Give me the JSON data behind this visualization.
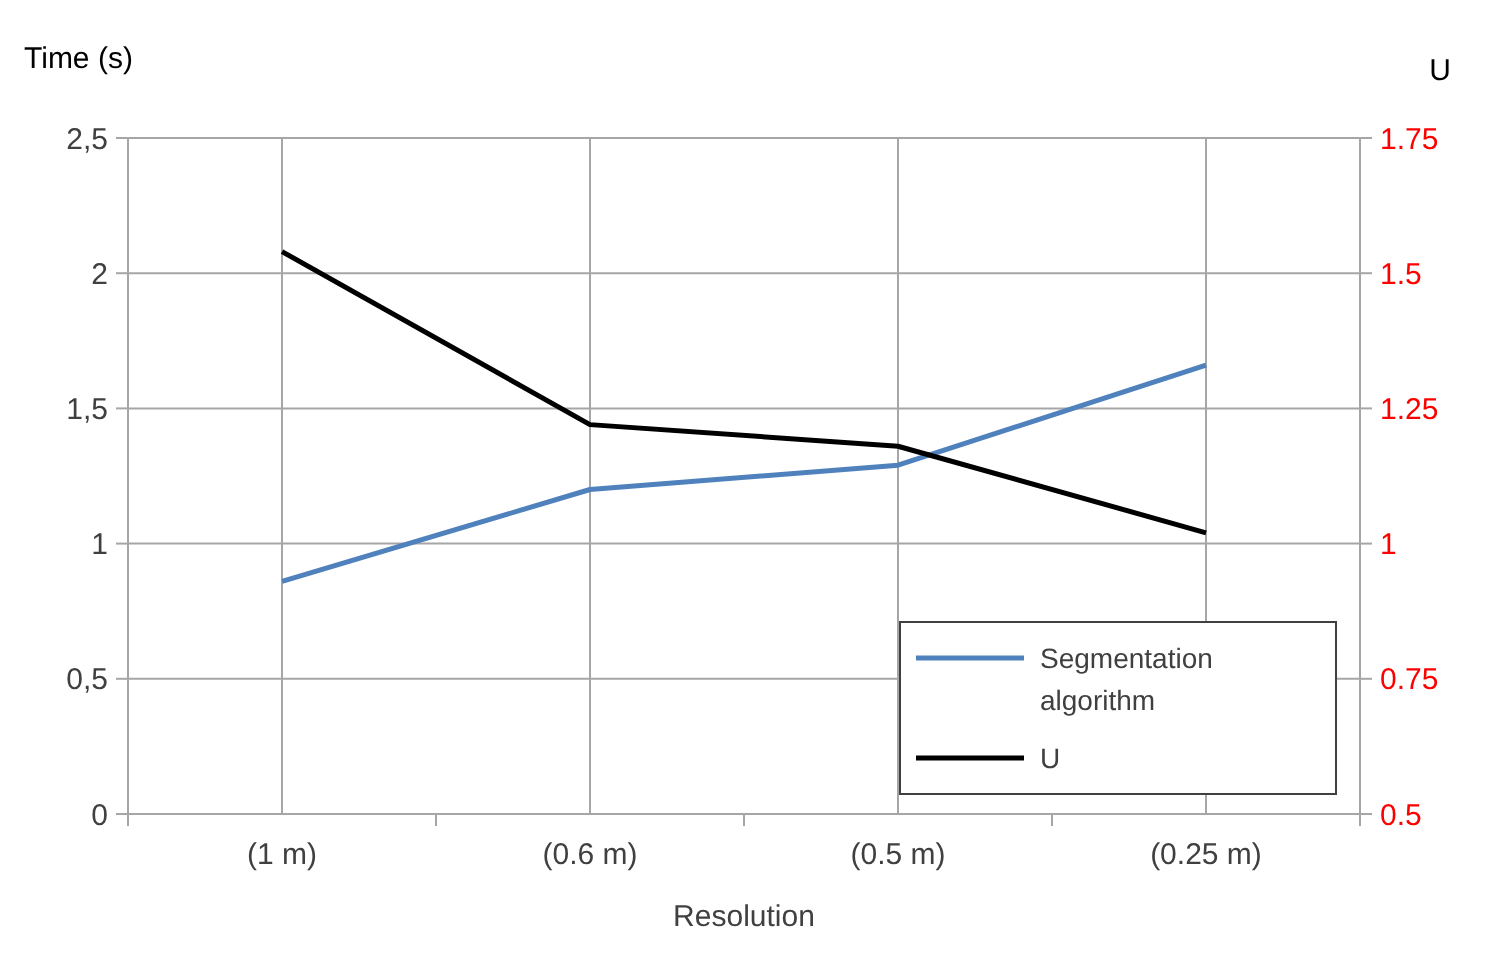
{
  "chart_data": {
    "type": "line",
    "xlabel": "Resolution",
    "ylabel": "Time (s)",
    "y2label": "U",
    "categories": [
      "(1 m)",
      "(0.6 m)",
      "(0.5 m)",
      "(0.25 m)"
    ],
    "series": [
      {
        "name": "Segmentation algorithm",
        "color": "#4f81bd",
        "values": [
          0.86,
          1.2,
          1.29,
          1.66
        ]
      },
      {
        "name": "U",
        "color": "#000000",
        "axis": "y2",
        "values": [
          1.54,
          1.22,
          1.18,
          1.02
        ]
      }
    ],
    "ylim": [
      0,
      2.5
    ],
    "yticks": [
      0,
      {
        "value": 0.5,
        "label": "0,5"
      },
      1,
      {
        "value": 1.5,
        "label": "1,5"
      },
      2,
      {
        "value": 2.5,
        "label": "2,5"
      }
    ],
    "y2lim": [
      0.5,
      1.75
    ],
    "y2ticks": [
      0.5,
      0.75,
      1,
      1.25,
      1.5,
      1.75
    ],
    "grid": true,
    "legend": "bottom right",
    "marker": "none",
    "line_style": "solid"
  }
}
